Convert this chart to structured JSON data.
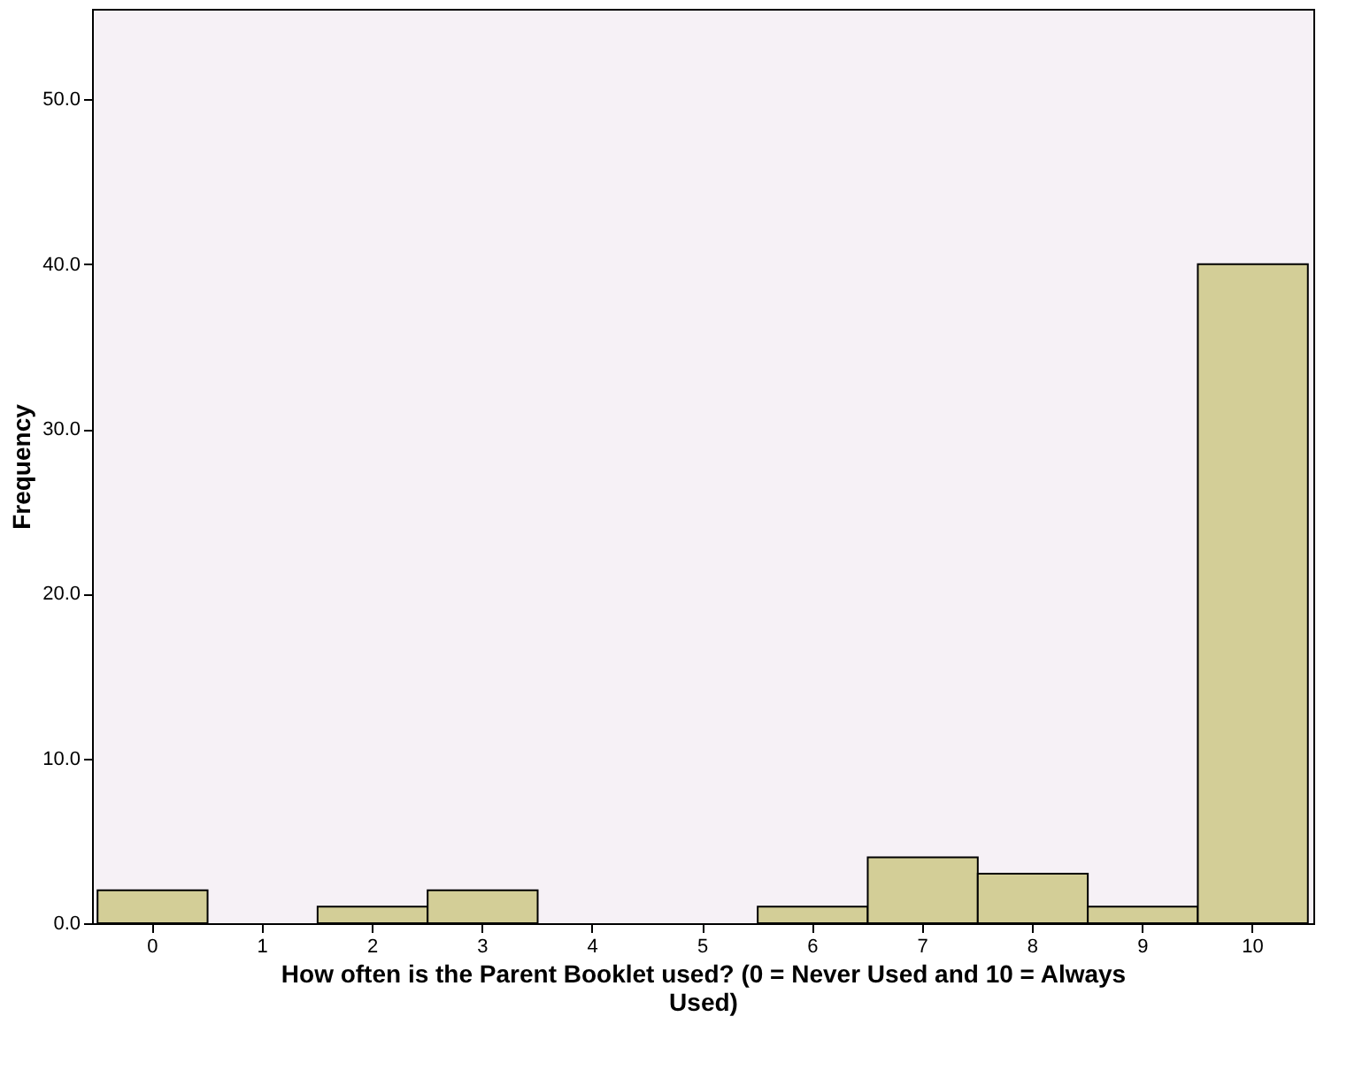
{
  "chart_data": {
    "type": "bar",
    "xlabel": "How often is the Parent Booklet used? (0 = Never Used and 10 = Always Used)",
    "ylabel": "Frequency",
    "categories": [
      "0",
      "1",
      "2",
      "3",
      "4",
      "5",
      "6",
      "7",
      "8",
      "9",
      "10"
    ],
    "values": [
      2,
      0,
      1,
      2,
      0,
      0,
      1,
      4,
      3,
      1,
      40
    ],
    "color": "#d3ce97",
    "ylim": [
      0,
      55.5
    ],
    "yticks": [
      {
        "value": 0,
        "label": "0.0"
      },
      {
        "value": 10,
        "label": "10.0"
      },
      {
        "value": 20,
        "label": "20.0"
      },
      {
        "value": 30,
        "label": "30.0"
      },
      {
        "value": 40,
        "label": "40.0"
      },
      {
        "value": 50,
        "label": "50.0"
      }
    ],
    "grid": false
  }
}
